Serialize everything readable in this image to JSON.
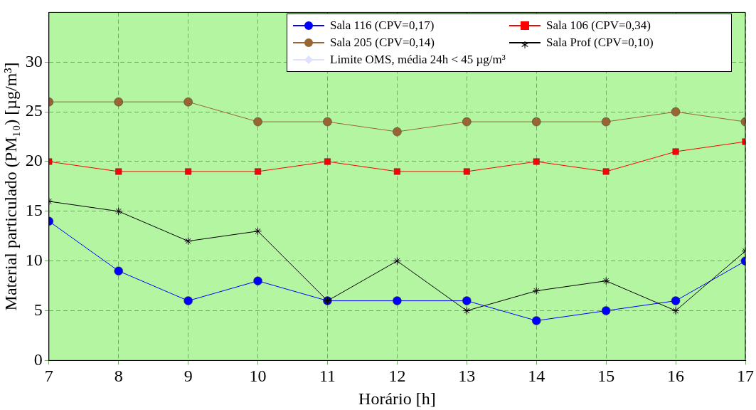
{
  "chart_data": {
    "type": "line",
    "xlabel": "Horário [h]",
    "ylabel": "Material particulado (PM₁₀) [µg/m³]",
    "x": [
      7,
      8,
      9,
      10,
      11,
      12,
      13,
      14,
      15,
      16,
      17
    ],
    "xlim": [
      7,
      17
    ],
    "xticks": [
      7,
      8,
      9,
      10,
      11,
      12,
      13,
      14,
      15,
      16,
      17
    ],
    "ylim": [
      0,
      35
    ],
    "yticks": [
      0,
      5,
      10,
      15,
      20,
      25,
      30
    ],
    "grid": true,
    "legend": "top right",
    "line_style": "solid",
    "series": [
      {
        "name": "Sala 116 (CPV=0,17)",
        "color": "#0000ff",
        "marker": "circle",
        "values": [
          14,
          9,
          6,
          8,
          6,
          6,
          6,
          4,
          5,
          6,
          10
        ]
      },
      {
        "name": "Sala 106 (CPV=0,34)",
        "color": "#ff0000",
        "marker": "square",
        "values": [
          20,
          19,
          19,
          19,
          20,
          19,
          19,
          20,
          19,
          21,
          22
        ]
      },
      {
        "name": "Sala 205 (CPV=0,14)",
        "color": "#996633",
        "marker": "circle",
        "values": [
          26,
          26,
          26,
          24,
          24,
          23,
          24,
          24,
          24,
          25,
          24
        ]
      },
      {
        "name": "Sala Prof (CPV=0,10)",
        "color": "#000000",
        "marker": "cross",
        "values": [
          16,
          15,
          12,
          13,
          6,
          10,
          5,
          7,
          8,
          5,
          11
        ]
      },
      {
        "name": "Limite OMS, média 24h < 45 µg/m³",
        "color": "#e0e0ff",
        "marker": "diamond",
        "values": [
          null,
          null,
          null,
          null,
          null,
          null,
          null,
          null,
          null,
          null,
          null
        ]
      }
    ]
  }
}
